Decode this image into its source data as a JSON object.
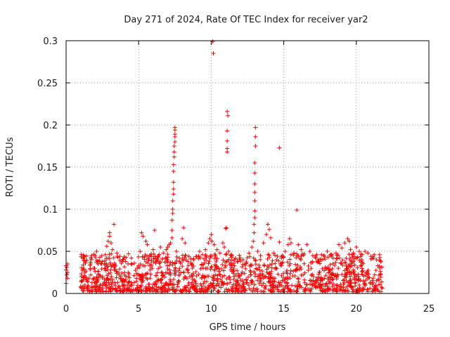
{
  "chart_data": {
    "type": "scatter",
    "title": "Day 271 of 2024, Rate Of TEC Index for receiver yar2",
    "xlabel": "GPS time / hours",
    "ylabel": "ROTI / TECUs",
    "xlim": [
      0,
      25
    ],
    "ylim": [
      0,
      0.3
    ],
    "x_ticks": [
      0,
      5,
      10,
      15,
      20,
      25
    ],
    "y_ticks": [
      0,
      0.05,
      0.1,
      0.15,
      0.2,
      0.25,
      0.3
    ],
    "x_tick_labels": [
      "0",
      "5",
      "10",
      "15",
      "20",
      "25"
    ],
    "y_tick_labels": [
      "0",
      "0.05",
      "0.1",
      "0.15",
      "0.2",
      "0.25",
      "0.3"
    ],
    "grid": true,
    "marker": "plus",
    "marker_color": "#ff0000",
    "series": [
      {
        "name": "ROTI",
        "points": [
          [
            0.0,
            0.033
          ],
          [
            0.0,
            0.028
          ],
          [
            0.05,
            0.022
          ],
          [
            0.1,
            0.018
          ],
          [
            0.05,
            0.031
          ],
          [
            0.1,
            0.025
          ],
          [
            0.0,
            0.012
          ],
          [
            0.1,
            0.035
          ],
          [
            1.2,
            0.029
          ],
          [
            1.3,
            0.01
          ],
          [
            1.5,
            0.014
          ],
          [
            1.7,
            0.022
          ],
          [
            1.9,
            0.03
          ],
          [
            2.0,
            0.045
          ],
          [
            2.1,
            0.05
          ],
          [
            2.2,
            0.035
          ],
          [
            2.5,
            0.038
          ],
          [
            2.7,
            0.046
          ],
          [
            2.8,
            0.056
          ],
          [
            2.9,
            0.062
          ],
          [
            3.0,
            0.068
          ],
          [
            3.0,
            0.072
          ],
          [
            3.1,
            0.06
          ],
          [
            3.2,
            0.052
          ],
          [
            3.3,
            0.082
          ],
          [
            3.5,
            0.048
          ],
          [
            3.7,
            0.044
          ],
          [
            3.9,
            0.04
          ],
          [
            4.1,
            0.038
          ],
          [
            4.3,
            0.047
          ],
          [
            4.5,
            0.042
          ],
          [
            4.7,
            0.036
          ],
          [
            4.9,
            0.03
          ],
          [
            5.1,
            0.05
          ],
          [
            5.2,
            0.072
          ],
          [
            5.3,
            0.068
          ],
          [
            5.5,
            0.062
          ],
          [
            5.6,
            0.058
          ],
          [
            5.8,
            0.045
          ],
          [
            6.0,
            0.052
          ],
          [
            6.1,
            0.075
          ],
          [
            6.3,
            0.04
          ],
          [
            6.5,
            0.055
          ],
          [
            6.7,
            0.048
          ],
          [
            6.9,
            0.052
          ],
          [
            7.0,
            0.055
          ],
          [
            7.1,
            0.058
          ],
          [
            7.2,
            0.06
          ],
          [
            7.3,
            0.066
          ],
          [
            7.3,
            0.075
          ],
          [
            7.3,
            0.087
          ],
          [
            7.35,
            0.095
          ],
          [
            7.35,
            0.1
          ],
          [
            7.35,
            0.11
          ],
          [
            7.4,
            0.118
          ],
          [
            7.4,
            0.124
          ],
          [
            7.4,
            0.132
          ],
          [
            7.4,
            0.145
          ],
          [
            7.4,
            0.153
          ],
          [
            7.45,
            0.162
          ],
          [
            7.45,
            0.168
          ],
          [
            7.45,
            0.175
          ],
          [
            7.5,
            0.18
          ],
          [
            7.5,
            0.186
          ],
          [
            7.5,
            0.189
          ],
          [
            7.5,
            0.194
          ],
          [
            7.5,
            0.197
          ],
          [
            7.6,
            0.05
          ],
          [
            7.8,
            0.042
          ],
          [
            8.0,
            0.065
          ],
          [
            8.1,
            0.078
          ],
          [
            8.2,
            0.06
          ],
          [
            8.4,
            0.038
          ],
          [
            8.6,
            0.036
          ],
          [
            8.8,
            0.04
          ],
          [
            9.0,
            0.044
          ],
          [
            9.2,
            0.05
          ],
          [
            9.4,
            0.046
          ],
          [
            9.6,
            0.052
          ],
          [
            9.8,
            0.06
          ],
          [
            9.9,
            0.065
          ],
          [
            10.0,
            0.07
          ],
          [
            10.05,
            0.062
          ],
          [
            10.1,
            0.299
          ],
          [
            10.15,
            0.285
          ],
          [
            10.2,
            0.058
          ],
          [
            10.4,
            0.052
          ],
          [
            10.6,
            0.048
          ],
          [
            10.8,
            0.06
          ],
          [
            10.9,
            0.055
          ],
          [
            11.0,
            0.077
          ],
          [
            11.05,
            0.078
          ],
          [
            11.1,
            0.216
          ],
          [
            11.15,
            0.211
          ],
          [
            11.1,
            0.193
          ],
          [
            11.1,
            0.181
          ],
          [
            11.1,
            0.172
          ],
          [
            11.1,
            0.168
          ],
          [
            11.2,
            0.05
          ],
          [
            11.4,
            0.046
          ],
          [
            11.6,
            0.04
          ],
          [
            11.8,
            0.038
          ],
          [
            12.0,
            0.042
          ],
          [
            12.2,
            0.04
          ],
          [
            12.4,
            0.036
          ],
          [
            12.6,
            0.048
          ],
          [
            12.8,
            0.055
          ],
          [
            12.9,
            0.062
          ],
          [
            12.95,
            0.072
          ],
          [
            12.95,
            0.082
          ],
          [
            13.0,
            0.09
          ],
          [
            13.0,
            0.098
          ],
          [
            13.0,
            0.11
          ],
          [
            13.0,
            0.12
          ],
          [
            13.0,
            0.13
          ],
          [
            13.0,
            0.143
          ],
          [
            13.0,
            0.155
          ],
          [
            13.05,
            0.175
          ],
          [
            13.05,
            0.186
          ],
          [
            13.05,
            0.197
          ],
          [
            13.2,
            0.05
          ],
          [
            13.4,
            0.045
          ],
          [
            13.6,
            0.06
          ],
          [
            13.8,
            0.07
          ],
          [
            13.9,
            0.082
          ],
          [
            14.0,
            0.076
          ],
          [
            14.1,
            0.066
          ],
          [
            14.3,
            0.048
          ],
          [
            14.5,
            0.04
          ],
          [
            14.7,
            0.173
          ],
          [
            14.7,
            0.061
          ],
          [
            14.9,
            0.045
          ],
          [
            15.1,
            0.05
          ],
          [
            15.3,
            0.058
          ],
          [
            15.4,
            0.065
          ],
          [
            15.5,
            0.06
          ],
          [
            15.7,
            0.048
          ],
          [
            15.9,
            0.099
          ],
          [
            16.0,
            0.058
          ],
          [
            16.2,
            0.052
          ],
          [
            16.4,
            0.047
          ],
          [
            16.6,
            0.058
          ],
          [
            16.8,
            0.05
          ],
          [
            17.0,
            0.045
          ],
          [
            17.2,
            0.042
          ],
          [
            17.4,
            0.04
          ],
          [
            17.6,
            0.046
          ],
          [
            17.8,
            0.044
          ],
          [
            18.0,
            0.05
          ],
          [
            18.2,
            0.046
          ],
          [
            18.4,
            0.042
          ],
          [
            18.6,
            0.048
          ],
          [
            18.8,
            0.058
          ],
          [
            19.0,
            0.054
          ],
          [
            19.2,
            0.06
          ],
          [
            19.4,
            0.065
          ],
          [
            19.5,
            0.062
          ],
          [
            19.6,
            0.052
          ],
          [
            19.8,
            0.048
          ],
          [
            20.0,
            0.055
          ],
          [
            20.2,
            0.05
          ],
          [
            20.4,
            0.046
          ],
          [
            20.6,
            0.05
          ],
          [
            20.8,
            0.048
          ],
          [
            21.0,
            0.044
          ],
          [
            21.2,
            0.042
          ],
          [
            21.4,
            0.04
          ],
          [
            21.6,
            0.046
          ]
        ],
        "dense_band": {
          "x_range": [
            1.0,
            21.8
          ],
          "y_floor": 0.002,
          "y_typical_max": 0.045,
          "note": "Dense cloud of many points along baseline; individual values not legible"
        }
      }
    ]
  }
}
